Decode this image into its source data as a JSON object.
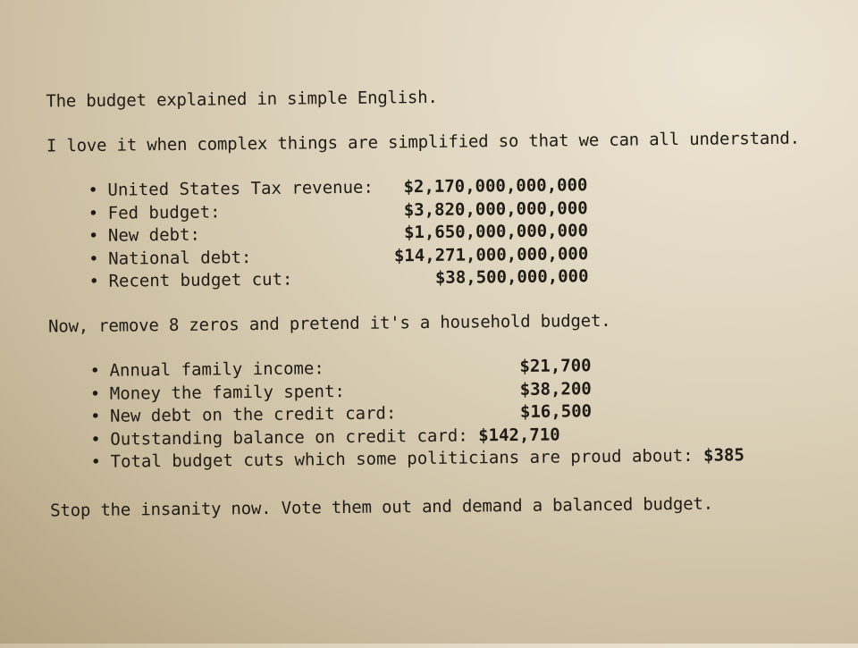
{
  "title": "The budget explained in simple English.",
  "intro": "I love it when complex things are simplified so that we can all understand.",
  "federal_list": [
    {
      "label": "United States Tax revenue:",
      "value": "$2,170,000,000,000"
    },
    {
      "label": "Fed budget:",
      "value": "$3,820,000,000,000"
    },
    {
      "label": "New debt:",
      "value": "$1,650,000,000,000"
    },
    {
      "label": "National debt:",
      "value": "$14,271,000,000,000"
    },
    {
      "label": "Recent budget cut:",
      "value": "$38,500,000,000"
    }
  ],
  "transition": "Now, remove 8 zeros and pretend it's a household budget.",
  "household_list": [
    {
      "label": "Annual family income:",
      "value": "$21,700"
    },
    {
      "label": "Money the family spent:",
      "value": "$38,200"
    },
    {
      "label": "New debt on the credit card:",
      "value": "$16,500"
    },
    {
      "label": "Outstanding balance on credit card:",
      "value": "$142,710"
    },
    {
      "label": "Total budget cuts which some politicians are proud about:",
      "value": "$385"
    }
  ],
  "closing": "Stop the insanity now. Vote them out and demand a balanced budget."
}
